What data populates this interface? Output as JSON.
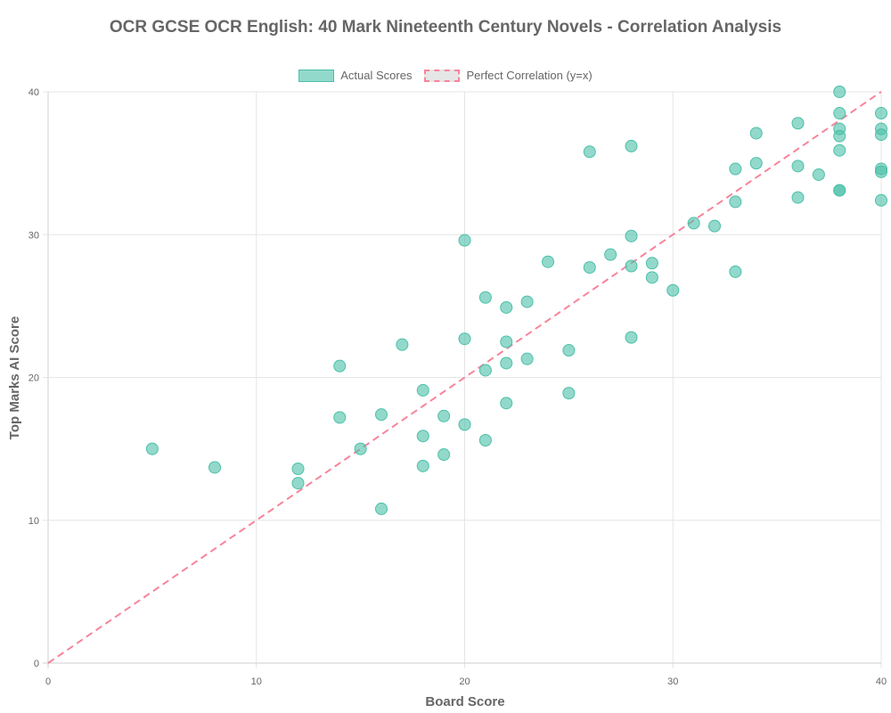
{
  "chart_data": {
    "type": "scatter",
    "title": "OCR GCSE OCR English: 40 Mark Nineteenth Century Novels - Correlation Analysis",
    "xlabel": "Board Score",
    "ylabel": "Top Marks AI Score",
    "xlim": [
      0,
      40
    ],
    "ylim": [
      0,
      40
    ],
    "xticks": [
      0,
      10,
      20,
      30,
      40
    ],
    "yticks": [
      0,
      10,
      20,
      30,
      40
    ],
    "grid": true,
    "legend_position": "top",
    "series": [
      {
        "name": "Actual Scores",
        "type": "scatter",
        "color": "#4bc0a8",
        "points": [
          [
            5,
            15.0
          ],
          [
            8,
            13.7
          ],
          [
            12,
            13.6
          ],
          [
            12,
            12.6
          ],
          [
            14,
            20.8
          ],
          [
            14,
            17.2
          ],
          [
            15,
            15.0
          ],
          [
            16,
            17.4
          ],
          [
            16,
            10.8
          ],
          [
            17,
            22.3
          ],
          [
            18,
            19.1
          ],
          [
            18,
            15.9
          ],
          [
            18,
            13.8
          ],
          [
            19,
            17.3
          ],
          [
            19,
            14.6
          ],
          [
            20,
            29.6
          ],
          [
            20,
            22.7
          ],
          [
            20,
            16.7
          ],
          [
            21,
            25.6
          ],
          [
            21,
            20.5
          ],
          [
            21,
            15.6
          ],
          [
            22,
            24.9
          ],
          [
            22,
            22.5
          ],
          [
            22,
            21.0
          ],
          [
            22,
            18.2
          ],
          [
            23,
            25.3
          ],
          [
            23,
            21.3
          ],
          [
            24,
            28.1
          ],
          [
            25,
            21.9
          ],
          [
            25,
            18.9
          ],
          [
            26,
            35.8
          ],
          [
            26,
            27.7
          ],
          [
            27,
            28.6
          ],
          [
            28,
            36.2
          ],
          [
            28,
            29.9
          ],
          [
            28,
            27.8
          ],
          [
            28,
            22.8
          ],
          [
            29,
            28.0
          ],
          [
            29,
            27.0
          ],
          [
            30,
            26.1
          ],
          [
            31,
            30.8
          ],
          [
            32,
            30.6
          ],
          [
            33,
            34.6
          ],
          [
            33,
            32.3
          ],
          [
            33,
            27.4
          ],
          [
            34,
            37.1
          ],
          [
            34,
            35.0
          ],
          [
            36,
            37.8
          ],
          [
            36,
            34.8
          ],
          [
            36,
            32.6
          ],
          [
            37,
            34.2
          ],
          [
            38,
            40.0
          ],
          [
            38,
            38.5
          ],
          [
            38,
            37.4
          ],
          [
            38,
            36.9
          ],
          [
            38,
            35.9
          ],
          [
            38,
            33.1
          ],
          [
            38,
            33.1
          ],
          [
            40,
            38.5
          ],
          [
            40,
            37.4
          ],
          [
            40,
            37.0
          ],
          [
            40,
            34.6
          ],
          [
            40,
            34.4
          ],
          [
            40,
            32.4
          ]
        ]
      },
      {
        "name": "Perfect Correlation (y=x)",
        "type": "line",
        "style": "dashed",
        "color": "#f7849a",
        "points": [
          [
            0,
            0
          ],
          [
            40,
            40
          ]
        ]
      }
    ]
  },
  "legend": {
    "actual_label": "Actual Scores",
    "perfect_label": "Perfect Correlation (y=x)"
  }
}
